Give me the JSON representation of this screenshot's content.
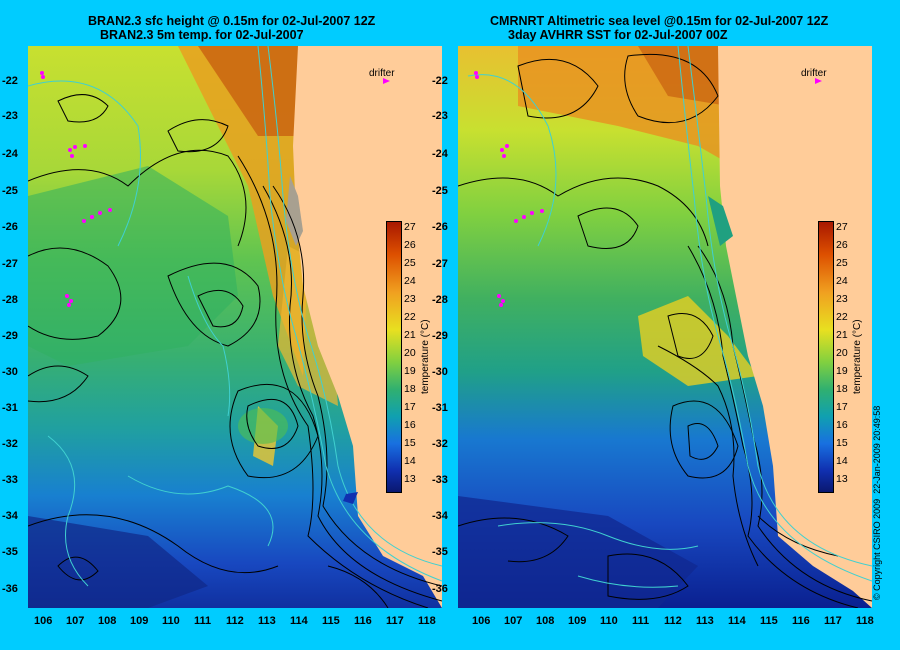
{
  "left": {
    "title_line1": "BRAN2.3 sfc height @ 0.15m for 02-Jul-2007 12Z",
    "title_line2": "BRAN2.3 5m temp. for 02-Jul-2007"
  },
  "right": {
    "title_line1": "CMRNRT Altimetric sea level  @0.15m  for 02-Jul-2007 12Z",
    "title_line2": "3day AVHRR SST for 02-Jul-2007 00Z"
  },
  "drifter_label": "drifter",
  "lat_ticks": [
    "-22",
    "-23",
    "-24",
    "-25",
    "-26",
    "-27",
    "-28",
    "-29",
    "-30",
    "-31",
    "-32",
    "-33",
    "-34",
    "-35",
    "-36"
  ],
  "lon_ticks": [
    "106",
    "107",
    "108",
    "109",
    "110",
    "111",
    "112",
    "113",
    "114",
    "115",
    "116",
    "117",
    "118"
  ],
  "colorbar": {
    "title": "temperature (°C)",
    "labels": [
      "27",
      "26",
      "25",
      "24",
      "23",
      "22",
      "21",
      "20",
      "19",
      "18",
      "17",
      "16",
      "15",
      "14",
      "13"
    ],
    "colors": [
      "#b22000",
      "#dd5000",
      "#ee8a10",
      "#f5b020",
      "#f0d820",
      "#d8ee20",
      "#a8e030",
      "#70d040",
      "#40c060",
      "#20b080",
      "#10a0b0",
      "#1880d8",
      "#1850e0",
      "#1030b0",
      "#0a1a80"
    ]
  },
  "copyright": "© Copyright CSIRO 2009",
  "timestamp": "22-Jan-2009 20:49:58",
  "colors": {
    "background": "#00ccff",
    "land": "#ffcc99",
    "contour": "#000000",
    "bathymetry": "#40d0d0",
    "drifter": "#ff00ff"
  }
}
